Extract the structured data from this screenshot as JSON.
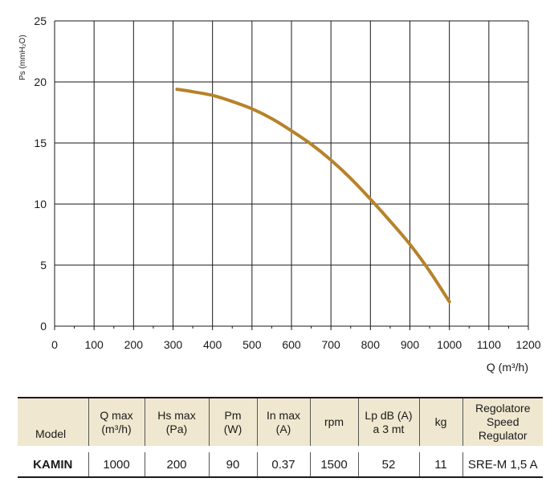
{
  "chart_data": {
    "type": "line",
    "title": "",
    "xlabel": "Q (m³/h)",
    "ylabel": "Ps (mmH₂O)",
    "xlim": [
      0,
      1200
    ],
    "ylim": [
      0,
      25
    ],
    "xticks": [
      0,
      100,
      200,
      300,
      400,
      500,
      600,
      700,
      800,
      900,
      1000,
      1100,
      1200
    ],
    "yticks": [
      0,
      5,
      10,
      15,
      20,
      25
    ],
    "grid": true,
    "series": [
      {
        "color": "#b7822a",
        "x": [
          310,
          350,
          400,
          450,
          500,
          550,
          600,
          650,
          700,
          750,
          800,
          850,
          900,
          950,
          1000
        ],
        "y": [
          19.4,
          19.2,
          18.9,
          18.4,
          17.8,
          17.0,
          16.0,
          14.9,
          13.6,
          12.1,
          10.4,
          8.6,
          6.7,
          4.5,
          2.0
        ]
      }
    ]
  },
  "table": {
    "headers": [
      [
        "Model"
      ],
      [
        "Q max",
        "(m³/h)"
      ],
      [
        "Hs max",
        "(Pa)"
      ],
      [
        "Pm",
        "(W)"
      ],
      [
        "In max",
        "(A)"
      ],
      [
        "rpm"
      ],
      [
        "Lp dB (A)",
        "a 3 mt"
      ],
      [
        "kg"
      ],
      [
        "Regolatore",
        "Speed Regulator"
      ]
    ],
    "rows": [
      [
        "KAMIN",
        "1000",
        "200",
        "90",
        "0.37",
        "1500",
        "52",
        "11",
        "SRE-M 1,5 A"
      ]
    ]
  },
  "colors": {
    "curve": "#b7822a",
    "header_bg": "#efe7cf",
    "grid": "#1a1a1a"
  }
}
